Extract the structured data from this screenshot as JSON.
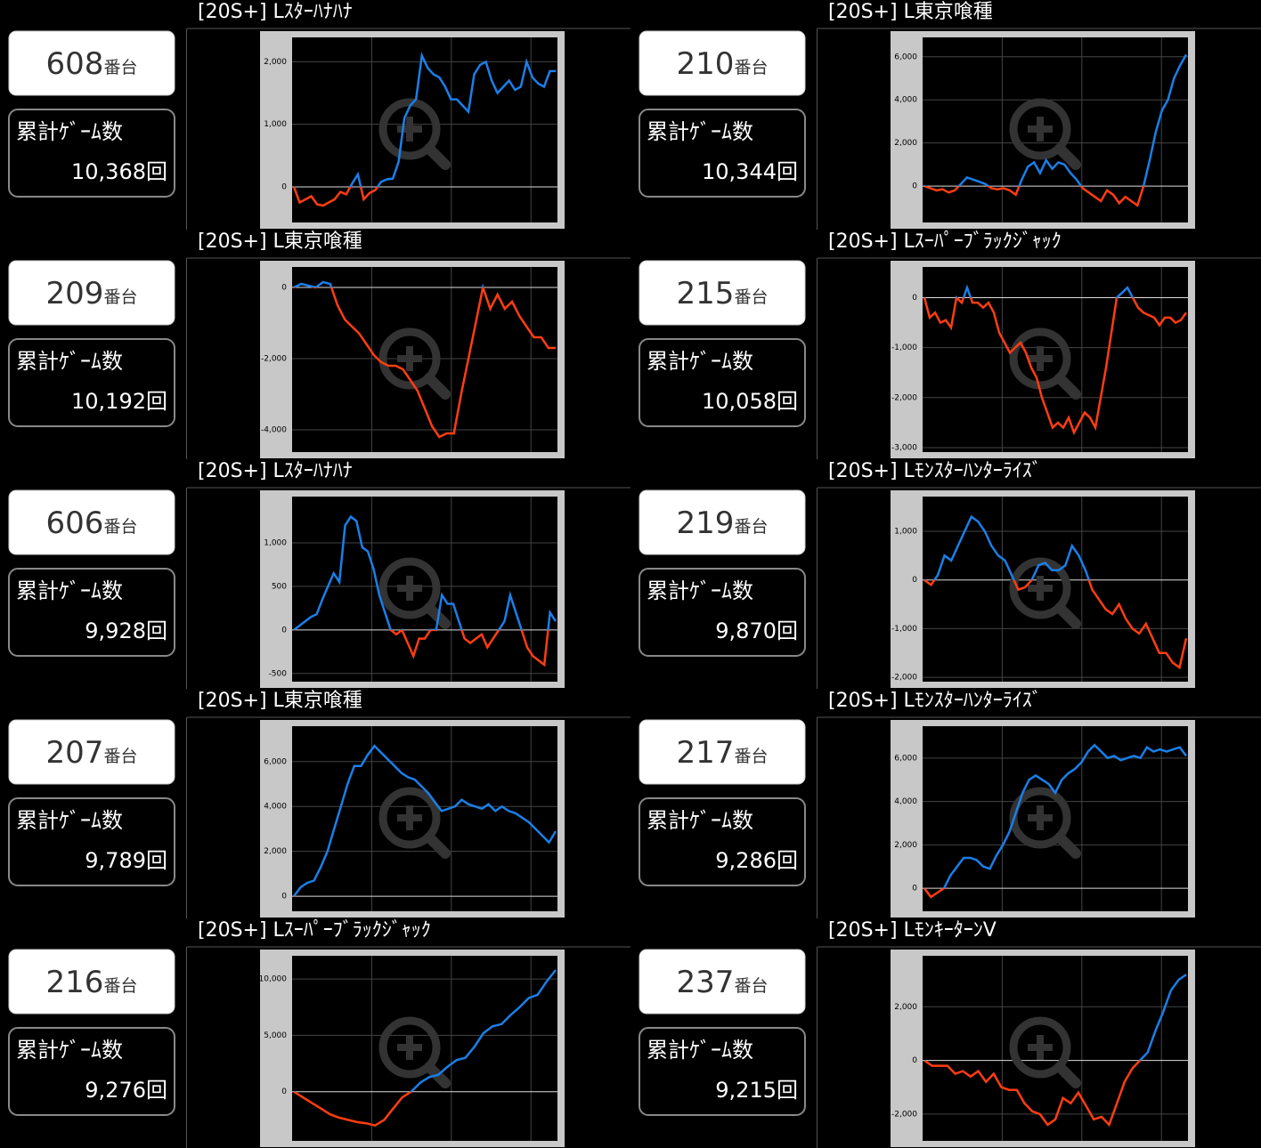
{
  "panels": [
    {
      "machine": "608",
      "machine_unit": "番台",
      "games_label": "累計ｹﾞｰﾑ数",
      "games": "10,368回",
      "title": "[20S+] Lｽﾀｰﾊﾅﾊﾅ",
      "chart": {
        "type": "line",
        "ylim": [
          -570,
          2390
        ],
        "yticks": [
          {
            "value": 2000,
            "label": "2,000"
          },
          {
            "value": 1000,
            "label": "1,000"
          },
          0
        ],
        "pos_color": "#1a7fe8",
        "neg_color": "#ff3d12",
        "grid": true,
        "values": [
          0,
          -250,
          -200,
          -150,
          -280,
          -300,
          -250,
          -200,
          -80,
          -120,
          50,
          200,
          -200,
          -100,
          -50,
          80,
          120,
          130,
          400,
          1100,
          1300,
          1400,
          2100,
          1900,
          1800,
          1750,
          1600,
          1400,
          1400,
          1300,
          1200,
          1800,
          1950,
          2000,
          1700,
          1500,
          1600,
          1700,
          1550,
          1600,
          2000,
          1750,
          1650,
          1600,
          1850,
          1850
        ]
      }
    },
    {
      "machine": "210",
      "machine_unit": "番台",
      "games_label": "累計ｹﾞｰﾑ数",
      "games": "10,344回",
      "title": "[20S+] L東京喰種",
      "chart": {
        "type": "line",
        "ylim": [
          -1690,
          6900
        ],
        "yticks": [
          {
            "value": 6000,
            "label": "6,000"
          },
          {
            "value": 4000,
            "label": "4,000"
          },
          {
            "value": 2000,
            "label": "2,000"
          },
          0
        ],
        "pos_color": "#1a7fe8",
        "neg_color": "#ff3d12",
        "grid": true,
        "values": [
          0,
          -100,
          -200,
          -150,
          -300,
          -200,
          100,
          400,
          300,
          200,
          100,
          -100,
          -150,
          -100,
          -200,
          -400,
          300,
          900,
          1100,
          600,
          1200,
          800,
          1100,
          1000,
          600,
          300,
          -100,
          -300,
          -500,
          -700,
          -200,
          -400,
          -800,
          -500,
          -700,
          -900,
          0,
          1200,
          2500,
          3500,
          4000,
          5000,
          5600,
          6100
        ]
      }
    },
    {
      "machine": "209",
      "machine_unit": "番台",
      "games_label": "累計ｹﾞｰﾑ数",
      "games": "10,192回",
      "title": "[20S+] L東京喰種",
      "chart": {
        "type": "line",
        "ylim": [
          -4625,
          575
        ],
        "yticks": [
          0,
          {
            "value": -2000,
            "label": "-2,000"
          },
          {
            "value": -4000,
            "label": "-4,000"
          }
        ],
        "pos_color": "#1a7fe8",
        "neg_color": "#ff3d12",
        "grid": true,
        "values": [
          0,
          100,
          50,
          0,
          150,
          100,
          -500,
          -900,
          -1100,
          -1300,
          -1600,
          -1900,
          -2100,
          -2200,
          -2200,
          -2300,
          -2600,
          -2900,
          -3400,
          -3900,
          -4200,
          -4100,
          -4100,
          -3000,
          -2000,
          -1000,
          0,
          -600,
          -200,
          -600,
          -400,
          -800,
          -1100,
          -1400,
          -1400,
          -1700,
          -1700
        ]
      }
    },
    {
      "machine": "215",
      "machine_unit": "番台",
      "games_label": "累計ｹﾞｰﾑ数",
      "games": "10,058回",
      "title": "[20S+] Lｽｰﾊﾟｰﾌﾞﾗｯｸｼﾞｬｯｸ",
      "chart": {
        "type": "line",
        "ylim": [
          -3090,
          614
        ],
        "yticks": [
          0,
          {
            "value": -1000,
            "label": "-1,000"
          },
          {
            "value": -2000,
            "label": "-2,000"
          },
          {
            "value": -3000,
            "label": "-3,000"
          }
        ],
        "pos_color": "#1a7fe8",
        "neg_color": "#ff3d12",
        "grid": true,
        "values": [
          0,
          -400,
          -300,
          -500,
          -450,
          -600,
          0,
          -100,
          200,
          -100,
          -100,
          -200,
          -100,
          -300,
          -700,
          -900,
          -1100,
          -1000,
          -900,
          -1100,
          -1400,
          -1600,
          -2000,
          -2300,
          -2600,
          -2500,
          -2600,
          -2400,
          -2700,
          -2500,
          -2300,
          -2400,
          -2600,
          -2000,
          -1400,
          -700,
          0,
          100,
          200,
          0,
          -200,
          -300,
          -350,
          -400,
          -550,
          -400,
          -400,
          -500,
          -450,
          -300
        ]
      }
    },
    {
      "machine": "606",
      "machine_unit": "番台",
      "games_label": "累計ｹﾞｰﾑ数",
      "games": "9,928回",
      "title": "[20S+] Lｽﾀｰﾊﾅﾊﾅ",
      "chart": {
        "type": "line",
        "ylim": [
          -594,
          1531
        ],
        "yticks": [
          {
            "value": 1000,
            "label": "1,000"
          },
          500,
          0,
          -500
        ],
        "pos_color": "#1a7fe8",
        "neg_color": "#ff3d12",
        "grid": true,
        "values": [
          0,
          50,
          100,
          150,
          180,
          350,
          500,
          650,
          550,
          1200,
          1300,
          1250,
          950,
          900,
          700,
          400,
          200,
          0,
          -50,
          0,
          -150,
          -300,
          -100,
          -100,
          0,
          0,
          400,
          300,
          300,
          100,
          -100,
          -150,
          -100,
          -50,
          -200,
          -100,
          0,
          100,
          400,
          200,
          0,
          -200,
          -300,
          -350,
          -400,
          200,
          100
        ]
      }
    },
    {
      "machine": "219",
      "machine_unit": "番台",
      "games_label": "累計ｹﾞｰﾑ数",
      "games": "9,870回",
      "title": "[20S+] Lﾓﾝｽﾀｰﾊﾝﾀｰﾗｲｽﾞ",
      "chart": {
        "type": "line",
        "ylim": [
          -2090,
          1713
        ],
        "yticks": [
          {
            "value": 1000,
            "label": "1,000"
          },
          0,
          {
            "value": -1000,
            "label": "-1,000"
          },
          {
            "value": -2000,
            "label": "-2,000"
          }
        ],
        "pos_color": "#1a7fe8",
        "neg_color": "#ff3d12",
        "grid": true,
        "values": [
          0,
          -100,
          100,
          500,
          400,
          700,
          1000,
          1300,
          1200,
          1000,
          700,
          500,
          400,
          100,
          -200,
          -150,
          0,
          300,
          350,
          200,
          200,
          300,
          700,
          500,
          200,
          -200,
          -400,
          -600,
          -700,
          -500,
          -800,
          -1000,
          -1100,
          -900,
          -1200,
          -1500,
          -1500,
          -1700,
          -1800,
          -1200
        ]
      }
    },
    {
      "machine": "207",
      "machine_unit": "番台",
      "games_label": "累計ｹﾞｰﾑ数",
      "games": "9,789回",
      "title": "[20S+] L東京喰種",
      "chart": {
        "type": "line",
        "ylim": [
          -670,
          7578
        ],
        "yticks": [
          {
            "value": 6000,
            "label": "6,000"
          },
          {
            "value": 4000,
            "label": "4,000"
          },
          {
            "value": 2000,
            "label": "2,000"
          },
          0
        ],
        "pos_color": "#1a7fe8",
        "neg_color": "#ff3d12",
        "grid": true,
        "values": [
          0,
          400,
          600,
          700,
          1300,
          2000,
          3000,
          4000,
          5000,
          5800,
          5800,
          6300,
          6700,
          6400,
          6100,
          5800,
          5500,
          5300,
          5200,
          4900,
          4600,
          4200,
          3800,
          3900,
          4000,
          4300,
          4100,
          4000,
          3900,
          4100,
          3800,
          4000,
          3800,
          3700,
          3500,
          3300,
          3000,
          2700,
          2400,
          2900
        ]
      }
    },
    {
      "machine": "217",
      "machine_unit": "番台",
      "games_label": "累計ｹﾞｰﾑ数",
      "games": "9,286回",
      "title": "[20S+] Lﾓﾝｽﾀｰﾊﾝﾀｰﾗｲｽﾞ",
      "chart": {
        "type": "line",
        "ylim": [
          -1060,
          7470
        ],
        "yticks": [
          {
            "value": 6000,
            "label": "6,000"
          },
          {
            "value": 4000,
            "label": "4,000"
          },
          {
            "value": 2000,
            "label": "2,000"
          },
          0
        ],
        "pos_color": "#1a7fe8",
        "neg_color": "#ff3d12",
        "grid": true,
        "values": [
          0,
          -400,
          -200,
          0,
          600,
          1000,
          1400,
          1400,
          1300,
          1000,
          900,
          1500,
          2000,
          2600,
          3500,
          4400,
          5000,
          5200,
          5000,
          4800,
          4400,
          5000,
          5300,
          5500,
          5800,
          6300,
          6600,
          6300,
          6000,
          6100,
          5900,
          6000,
          6100,
          6000,
          6500,
          6300,
          6400,
          6300,
          6400,
          6500,
          6100
        ]
      }
    },
    {
      "machine": "216",
      "machine_unit": "番台",
      "games_label": "累計ｹﾞｰﾑ数",
      "games": "9,276回",
      "title": "[20S+] Lｽｰﾊﾟｰﾌﾞﾗｯｸｼﾞｬｯｸ",
      "chart": {
        "type": "line",
        "ylim": [
          -4365,
          12063
        ],
        "yticks": [
          {
            "value": 10000,
            "label": "10,000"
          },
          {
            "value": 5000,
            "label": "5,000"
          },
          0
        ],
        "pos_color": "#1a7fe8",
        "neg_color": "#ff3d12",
        "grid": true,
        "values": [
          0,
          -500,
          -1000,
          -1500,
          -2000,
          -2300,
          -2500,
          -2700,
          -2800,
          -3000,
          -2500,
          -1500,
          -500,
          0,
          800,
          1300,
          1500,
          2200,
          2800,
          3000,
          4000,
          5200,
          5800,
          6000,
          6800,
          7500,
          8300,
          8600,
          9800,
          10800
        ]
      }
    },
    {
      "machine": "237",
      "machine_unit": "番台",
      "games_label": "累計ｹﾞｰﾑ数",
      "games": "9,215回",
      "title": "[20S+] LﾓﾝｷｰﾀｰﾝV",
      "chart": {
        "type": "line",
        "ylim": [
          -3000,
          3900
        ],
        "yticks": [
          {
            "value": 2000,
            "label": "2,000"
          },
          0,
          {
            "value": -2000,
            "label": "-2,000"
          }
        ],
        "pos_color": "#1a7fe8",
        "neg_color": "#ff3d12",
        "grid": true,
        "values": [
          0,
          -200,
          -200,
          -200,
          -500,
          -400,
          -600,
          -400,
          -800,
          -500,
          -1000,
          -1100,
          -1100,
          -1600,
          -1900,
          -2000,
          -2400,
          -2200,
          -1400,
          -1600,
          -1200,
          -1700,
          -2200,
          -2100,
          -2400,
          -1600,
          -800,
          -300,
          0,
          300,
          1100,
          1800,
          2600,
          3000,
          3200
        ]
      }
    }
  ]
}
